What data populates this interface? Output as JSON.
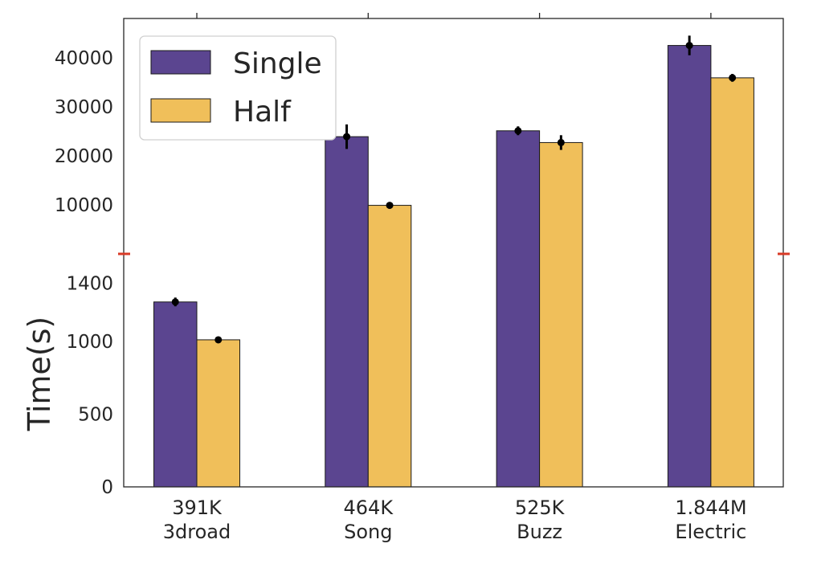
{
  "chart_data": {
    "type": "bar",
    "title": "",
    "xlabel": "",
    "ylabel": "Time(s)",
    "scale": "broken",
    "ylim_lower": [
      0,
      1600
    ],
    "ylim_upper": [
      0,
      48000
    ],
    "yticks_lower": [
      "0",
      "500",
      "1000",
      "1400"
    ],
    "yticks_upper": [
      "10000",
      "20000",
      "30000",
      "40000"
    ],
    "categories": [
      {
        "size": "391K",
        "name": "3droad"
      },
      {
        "size": "464K",
        "name": "Song"
      },
      {
        "size": "525K",
        "name": "Buzz"
      },
      {
        "size": "1.844M",
        "name": "Electric"
      }
    ],
    "series": [
      {
        "name": "Single",
        "color": "#5b4590",
        "values": [
          1270,
          23900,
          25100,
          42500
        ],
        "errors": [
          30,
          2500,
          900,
          2000
        ]
      },
      {
        "name": "Half",
        "color": "#f0bf5a",
        "values": [
          1010,
          9900,
          22700,
          35900
        ],
        "errors": [
          10,
          200,
          1500,
          800
        ]
      }
    ],
    "legend": {
      "position": "top-left"
    },
    "grid": false,
    "break_marker_color": "#d93a26"
  }
}
